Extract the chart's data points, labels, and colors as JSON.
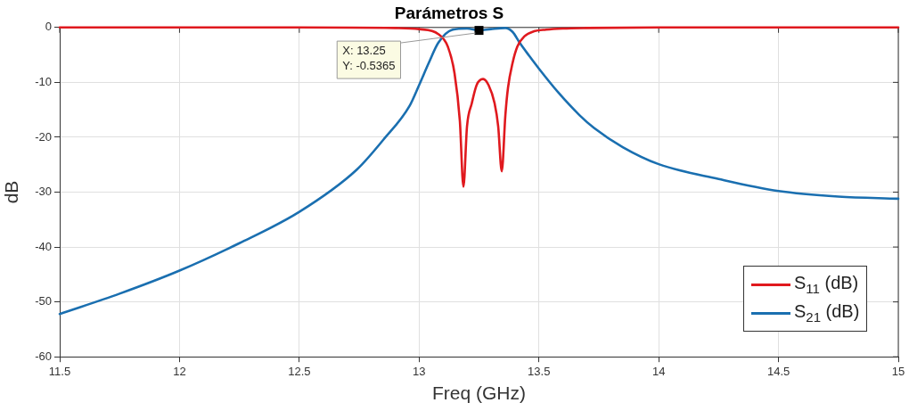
{
  "chart_data": {
    "type": "line",
    "title": "Parámetros S",
    "xlabel": "Freq (GHz)",
    "ylabel": "dB",
    "xlim": [
      11.5,
      15
    ],
    "ylim": [
      -60,
      0
    ],
    "xticks": [
      11.5,
      12,
      12.5,
      13,
      13.5,
      14,
      14.5,
      15
    ],
    "yticks": [
      -60,
      -50,
      -40,
      -30,
      -20,
      -10,
      0
    ],
    "grid": true,
    "legend": "bottom right",
    "marker": "none",
    "line_style": "solid",
    "annotations": [
      {
        "text": "X: 13.25\nY: -0.5365",
        "x": 13.25,
        "y": -0.5365
      }
    ],
    "series": [
      {
        "name": "S$_{11}$ (dB)",
        "color": "#e0191e",
        "x": [
          11.5,
          12,
          12.5,
          12.9,
          13.0,
          13.08,
          13.12,
          13.148,
          13.17,
          13.185,
          13.2,
          13.22,
          13.24,
          13.267,
          13.29,
          13.315,
          13.33,
          13.345,
          13.36,
          13.371,
          13.39,
          13.41,
          13.44,
          13.48,
          13.53,
          13.6,
          13.7,
          14,
          14.5,
          15
        ],
        "values": [
          0,
          0,
          0,
          -0.1,
          -0.3,
          -1.2,
          -3.5,
          -8.4,
          -17,
          -29,
          -18,
          -13.8,
          -10.5,
          -9.4,
          -10.5,
          -13.8,
          -18,
          -26.2,
          -16,
          -11,
          -6.5,
          -3.5,
          -1.6,
          -0.7,
          -0.4,
          -0.2,
          -0.1,
          0,
          0,
          0
        ]
      },
      {
        "name": "S$_{21}$ (dB)",
        "color": "#1a6fb0",
        "x": [
          11.5,
          11.75,
          12,
          12.25,
          12.5,
          12.74,
          12.85,
          12.96,
          13.0,
          13.04,
          13.08,
          13.14,
          13.2,
          13.25,
          13.3,
          13.36,
          13.39,
          13.42,
          13.46,
          13.5,
          13.58,
          13.67,
          13.73,
          13.85,
          14,
          14.25,
          14.5,
          14.75,
          15
        ],
        "values": [
          -52.2,
          -48.5,
          -44.3,
          -39.3,
          -33.6,
          -25.9,
          -20.5,
          -14.3,
          -10.5,
          -6.5,
          -2.8,
          -0.4,
          -0.2,
          -0.5365,
          -0.3,
          -0.1,
          -0.8,
          -2.8,
          -5.2,
          -7.5,
          -11.8,
          -16,
          -18.3,
          -21.8,
          -24.9,
          -27.6,
          -29.8,
          -30.8,
          -31.2
        ]
      }
    ]
  }
}
